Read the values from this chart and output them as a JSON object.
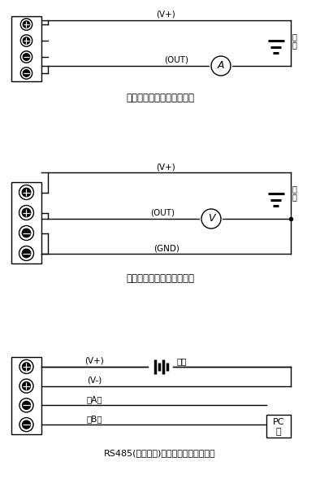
{
  "bg_color": "#ffffff",
  "line_color": "#000000",
  "title1": "电流输出接线图（两线制）",
  "title2": "电压输出接线图（三线制）",
  "title3": "RS485(数字信号)输出接线图（四线制）",
  "label_vplus": "(V+)",
  "label_out": "(OUT)",
  "label_gnd": "(GND)",
  "label_vminus": "(V-)",
  "label_A": "（A）",
  "label_B": "（B）",
  "label_source1": "电",
  "label_source2": "源",
  "label_A_circle": "A",
  "label_V_circle": "V",
  "label_PC1": "PC",
  "label_PC2": "机",
  "label_power": "电源",
  "figw": 3.94,
  "figh": 5.89,
  "dpi": 100
}
